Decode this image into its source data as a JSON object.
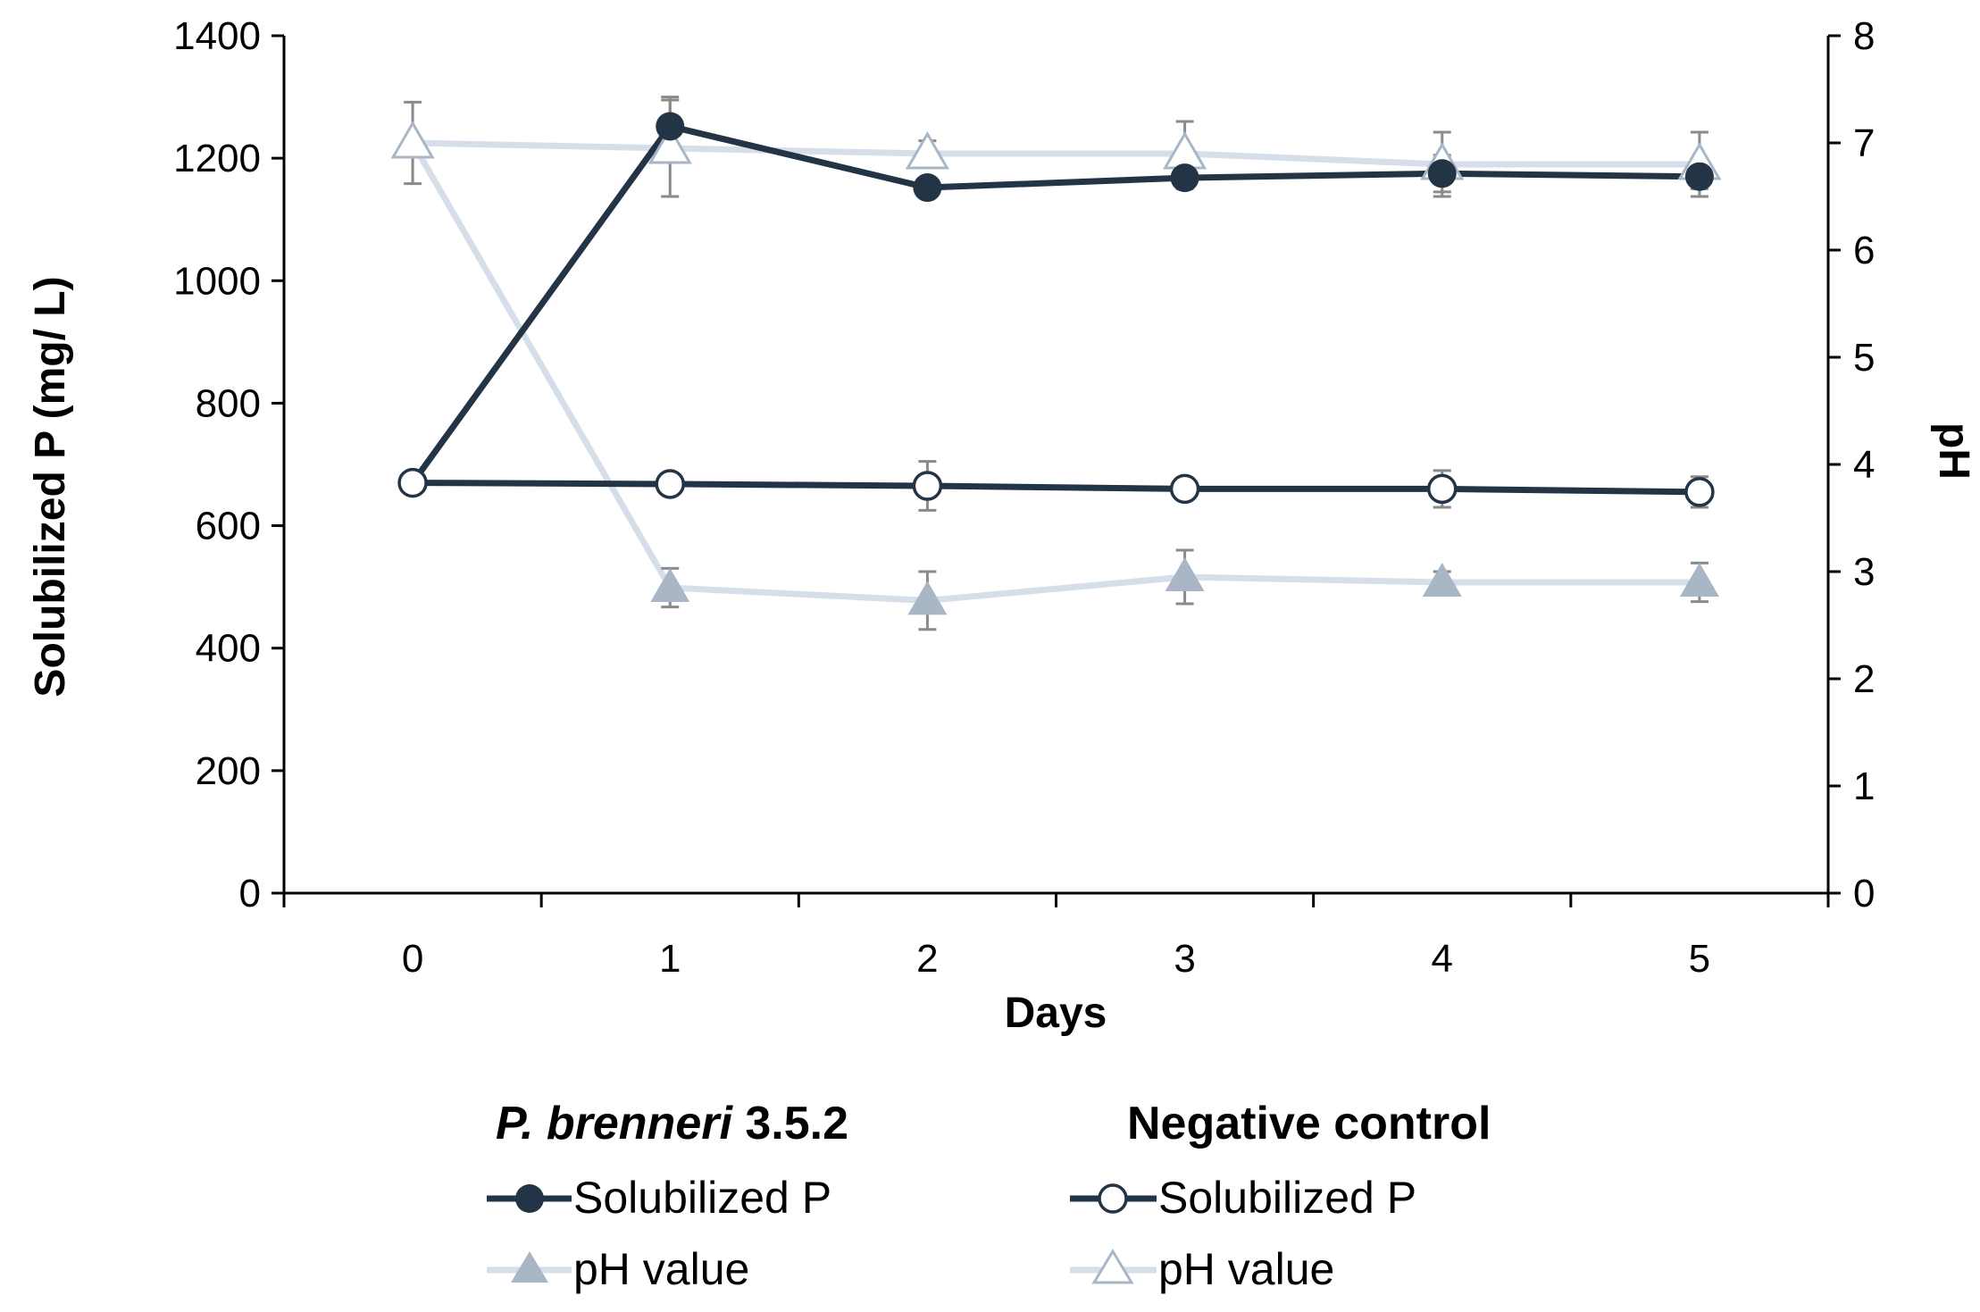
{
  "chart_data": {
    "type": "line",
    "title": "",
    "xlabel": "Days",
    "ylabel_left": "Solubilized P (mg/ L)",
    "ylabel_right": "pH",
    "categories": [
      "0",
      "1",
      "2",
      "3",
      "4",
      "5"
    ],
    "ylim_left": [
      0,
      1400
    ],
    "yticks_left": [
      "0",
      "200",
      "400",
      "600",
      "800",
      "1000",
      "1200",
      "1400"
    ],
    "ylim_right": [
      0,
      8
    ],
    "yticks_right": [
      "0",
      "1",
      "2",
      "3",
      "4",
      "5",
      "6",
      "7",
      "8"
    ],
    "grid": false,
    "series": [
      {
        "name": "Solubilized P",
        "group": "P. brenneri 3.5.2",
        "axis": "left",
        "marker": "circle-filled",
        "color": "#243447",
        "values": [
          670,
          1252,
          1152,
          1168,
          1175,
          1170
        ],
        "errors": [
          0,
          48,
          10,
          18,
          30,
          20
        ]
      },
      {
        "name": "pH value",
        "group": "P. brenneri 3.5.2",
        "axis": "right",
        "marker": "triangle-filled",
        "color": "#d6deea",
        "marker_color": "#a9b6c6",
        "values": [
          7.0,
          2.85,
          2.73,
          2.95,
          2.9,
          2.9
        ],
        "errors": [
          0.38,
          0.18,
          0.27,
          0.25,
          0.1,
          0.18
        ]
      },
      {
        "name": "Solubilized P",
        "group": "Negative control",
        "axis": "left",
        "marker": "circle-open",
        "color": "#243447",
        "values": [
          670,
          668,
          665,
          660,
          660,
          655
        ],
        "errors": [
          0,
          10,
          40,
          12,
          30,
          25
        ]
      },
      {
        "name": "pH value",
        "group": "Negative control",
        "axis": "right",
        "marker": "triangle-open",
        "color": "#d6deea",
        "marker_color": "#a9b6c6",
        "values": [
          7.0,
          6.95,
          6.9,
          6.9,
          6.8,
          6.8
        ],
        "errors": [
          0,
          0.45,
          0.12,
          0.3,
          0.3,
          0.3
        ]
      }
    ],
    "legend": {
      "placement": "bottom",
      "groups": [
        {
          "title_italic": "P. brenneri",
          "title_rest": " 3.5.2",
          "entries": [
            "Solubilized P",
            "pH value"
          ]
        },
        {
          "title": "Negative control",
          "entries": [
            "Solubilized P",
            "pH value"
          ]
        }
      ]
    }
  }
}
